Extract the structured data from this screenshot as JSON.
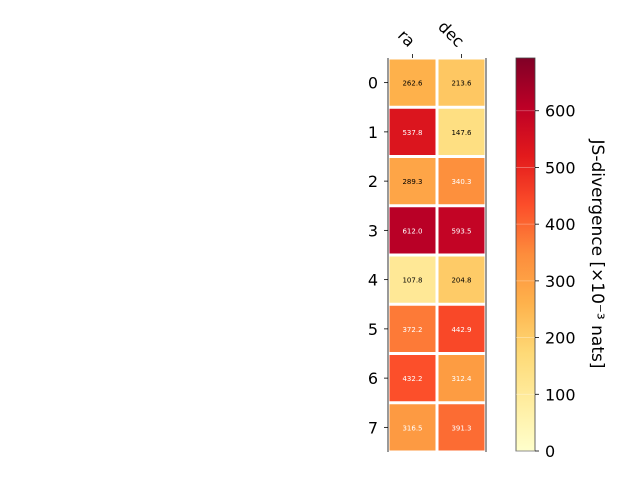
{
  "chart_data": {
    "type": "heatmap",
    "title": "",
    "x_categories": [
      "ra",
      "dec"
    ],
    "y_categories": [
      "0",
      "1",
      "2",
      "3",
      "4",
      "5",
      "6",
      "7"
    ],
    "values": [
      [
        262.6,
        213.6
      ],
      [
        537.8,
        147.6
      ],
      [
        289.3,
        340.3
      ],
      [
        612.0,
        593.5
      ],
      [
        107.8,
        204.8
      ],
      [
        372.2,
        442.9
      ],
      [
        432.2,
        312.4
      ],
      [
        316.5,
        391.3
      ]
    ],
    "value_labels": [
      [
        "262.6",
        "213.6"
      ],
      [
        "537.8",
        "147.6"
      ],
      [
        "289.3",
        "340.3"
      ],
      [
        "612.0",
        "593.5"
      ],
      [
        "107.8",
        "204.8"
      ],
      [
        "372.2",
        "442.9"
      ],
      [
        "432.2",
        "312.4"
      ],
      [
        "316.5",
        "391.3"
      ]
    ],
    "colorbar": {
      "label": "JS-divergence [×10⁻³ nats]",
      "range": [
        0,
        693
      ],
      "ticks": [
        0,
        100,
        200,
        300,
        400,
        500,
        600
      ],
      "colormap": "YlOrRd"
    }
  }
}
